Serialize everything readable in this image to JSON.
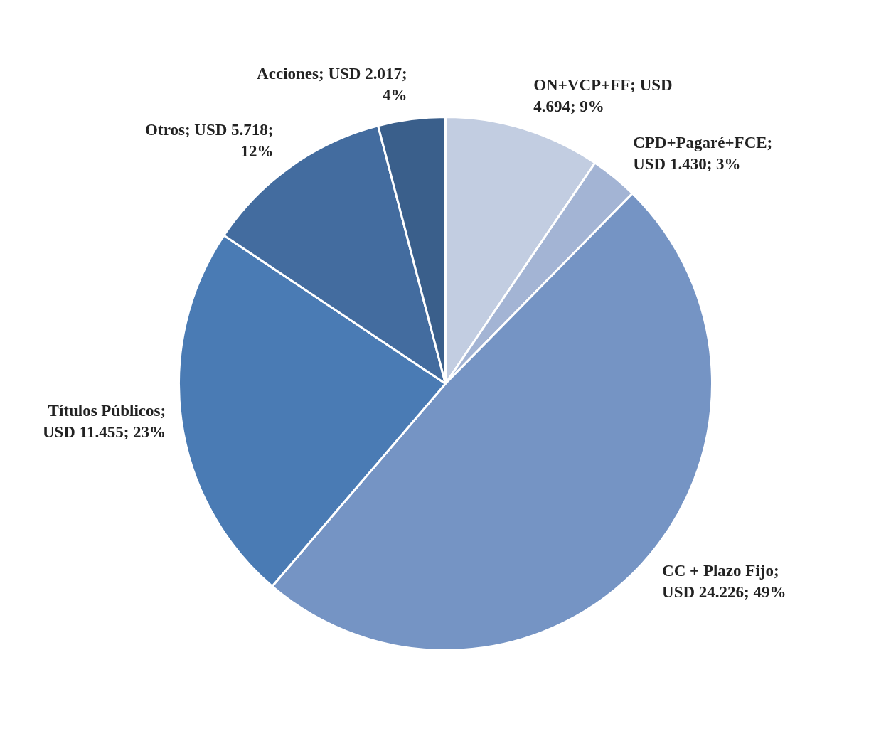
{
  "chart_data": {
    "type": "pie",
    "categories": [
      "ON+VCP+FF",
      "CPD+Pagaré+FCE",
      "CC + Plazo Fijo",
      "Títulos Públicos",
      "Otros",
      "Acciones"
    ],
    "values": [
      4694,
      1430,
      24226,
      11455,
      5718,
      2017
    ],
    "colors": [
      "#c2cde1",
      "#a3b4d4",
      "#7594c4",
      "#4a7bb4",
      "#436c9f",
      "#3a5f8b"
    ],
    "value_labels": [
      "; USD 4.694; 9%",
      "; USD 1.430; 3%",
      "; USD 24.226; 49%",
      "; USD 11.455; 23%",
      "; USD 5.718; 12%",
      "; USD 2.017; 4%"
    ],
    "legend": false
  }
}
